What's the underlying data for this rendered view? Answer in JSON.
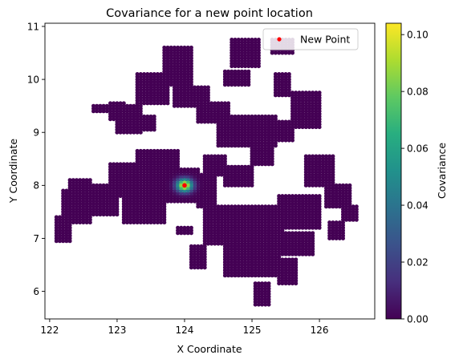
{
  "chart_data": {
    "type": "scatter",
    "title": "Covariance for a new point location",
    "xlabel": "X Coordinate",
    "ylabel": "Y Coordinate",
    "xlim": [
      121.93,
      126.82
    ],
    "ylim": [
      5.48,
      11.06
    ],
    "xticks": [
      "122",
      "123",
      "124",
      "125",
      "126"
    ],
    "yticks": [
      "6",
      "7",
      "8",
      "9",
      "10",
      "11"
    ],
    "grid": false,
    "colormap": "viridis",
    "colorbar": {
      "label": "Covariance",
      "range": [
        0,
        0.104
      ],
      "ticks": [
        "0.00",
        "0.02",
        "0.04",
        "0.06",
        "0.08",
        "0.10"
      ]
    },
    "legend": {
      "position": "top-right",
      "entries": [
        "New Point"
      ]
    },
    "new_point": {
      "name": "New Point",
      "x": 124.0,
      "y": 8.0,
      "color": "#ff0000"
    },
    "peak": {
      "x": 124.0,
      "y": 8.0,
      "value": 0.104
    },
    "grid_step": 0.05,
    "colors": {
      "low": "#440154",
      "high": "#fde725"
    },
    "point_regions": [
      {
        "xmin": 122.1,
        "xmax": 122.3,
        "ymin": 6.95,
        "ymax": 7.4
      },
      {
        "xmin": 122.2,
        "xmax": 122.6,
        "ymin": 7.3,
        "ymax": 7.9
      },
      {
        "xmin": 122.45,
        "xmax": 123.0,
        "ymin": 7.45,
        "ymax": 8.0
      },
      {
        "xmin": 122.3,
        "xmax": 122.6,
        "ymin": 7.85,
        "ymax": 8.1
      },
      {
        "xmin": 122.9,
        "xmax": 123.5,
        "ymin": 7.8,
        "ymax": 8.4
      },
      {
        "xmin": 123.1,
        "xmax": 123.7,
        "ymin": 7.3,
        "ymax": 7.8
      },
      {
        "xmin": 123.3,
        "xmax": 123.9,
        "ymin": 8.1,
        "ymax": 8.65
      },
      {
        "xmin": 123.5,
        "xmax": 124.2,
        "ymin": 7.7,
        "ymax": 8.3
      },
      {
        "xmin": 122.9,
        "xmax": 123.1,
        "ymin": 9.25,
        "ymax": 9.55
      },
      {
        "xmin": 122.65,
        "xmax": 123.25,
        "ymin": 9.4,
        "ymax": 9.5
      },
      {
        "xmin": 123.0,
        "xmax": 123.35,
        "ymin": 9.0,
        "ymax": 9.5
      },
      {
        "xmin": 123.3,
        "xmax": 123.75,
        "ymin": 9.55,
        "ymax": 10.1
      },
      {
        "xmin": 123.7,
        "xmax": 124.1,
        "ymin": 9.9,
        "ymax": 10.6
      },
      {
        "xmin": 123.85,
        "xmax": 124.35,
        "ymin": 9.5,
        "ymax": 9.85
      },
      {
        "xmin": 123.2,
        "xmax": 123.55,
        "ymin": 9.05,
        "ymax": 9.3
      },
      {
        "xmin": 124.2,
        "xmax": 124.65,
        "ymin": 9.2,
        "ymax": 9.55
      },
      {
        "xmin": 124.6,
        "xmax": 124.95,
        "ymin": 9.9,
        "ymax": 10.15
      },
      {
        "xmin": 124.7,
        "xmax": 125.1,
        "ymin": 10.25,
        "ymax": 10.75
      },
      {
        "xmin": 125.3,
        "xmax": 125.6,
        "ymin": 10.5,
        "ymax": 10.75
      },
      {
        "xmin": 125.35,
        "xmax": 125.55,
        "ymin": 9.7,
        "ymax": 10.1
      },
      {
        "xmin": 125.6,
        "xmax": 126.0,
        "ymin": 9.1,
        "ymax": 9.75
      },
      {
        "xmin": 125.3,
        "xmax": 125.6,
        "ymin": 8.85,
        "ymax": 9.2
      },
      {
        "xmin": 124.5,
        "xmax": 125.35,
        "ymin": 8.75,
        "ymax": 9.3
      },
      {
        "xmin": 124.3,
        "xmax": 124.6,
        "ymin": 8.2,
        "ymax": 8.55
      },
      {
        "xmin": 124.6,
        "xmax": 125.0,
        "ymin": 8.0,
        "ymax": 8.35
      },
      {
        "xmin": 125.0,
        "xmax": 125.3,
        "ymin": 8.4,
        "ymax": 8.9
      },
      {
        "xmin": 125.8,
        "xmax": 126.2,
        "ymin": 8.0,
        "ymax": 8.55
      },
      {
        "xmin": 126.1,
        "xmax": 126.45,
        "ymin": 7.6,
        "ymax": 8.0
      },
      {
        "xmin": 126.35,
        "xmax": 126.55,
        "ymin": 7.35,
        "ymax": 7.6
      },
      {
        "xmin": 125.4,
        "xmax": 126.0,
        "ymin": 7.2,
        "ymax": 7.8
      },
      {
        "xmin": 124.3,
        "xmax": 125.45,
        "ymin": 6.9,
        "ymax": 7.6
      },
      {
        "xmin": 124.6,
        "xmax": 125.4,
        "ymin": 6.3,
        "ymax": 6.95
      },
      {
        "xmin": 125.4,
        "xmax": 125.9,
        "ymin": 6.7,
        "ymax": 7.1
      },
      {
        "xmin": 125.4,
        "xmax": 125.65,
        "ymin": 6.15,
        "ymax": 6.6
      },
      {
        "xmin": 125.05,
        "xmax": 125.25,
        "ymin": 5.75,
        "ymax": 6.15
      },
      {
        "xmin": 124.1,
        "xmax": 124.3,
        "ymin": 6.45,
        "ymax": 6.85
      },
      {
        "xmin": 123.9,
        "xmax": 124.1,
        "ymin": 7.1,
        "ymax": 7.2
      },
      {
        "xmin": 124.2,
        "xmax": 124.45,
        "ymin": 7.6,
        "ymax": 8.2
      },
      {
        "xmin": 126.15,
        "xmax": 126.35,
        "ymin": 7.0,
        "ymax": 7.3
      }
    ]
  }
}
